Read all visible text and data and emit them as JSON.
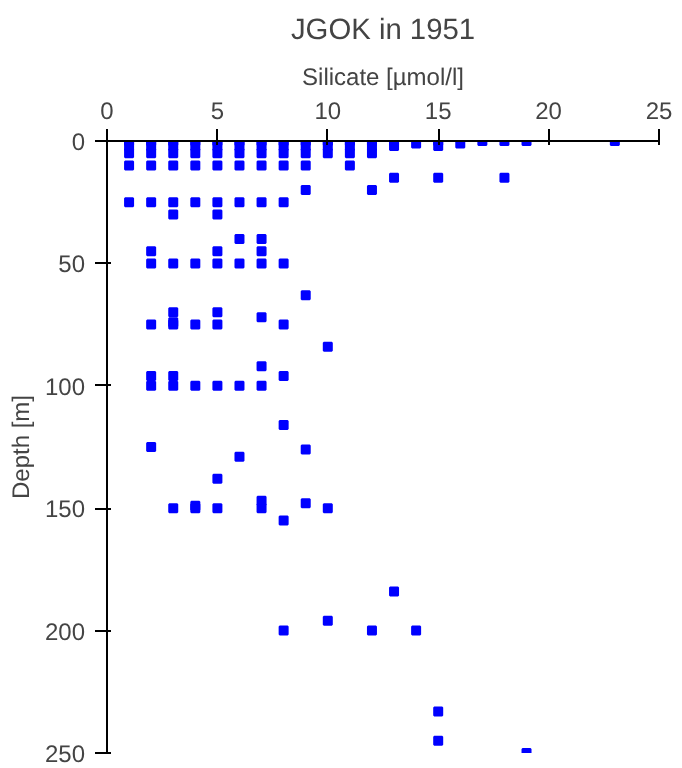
{
  "chart_data": {
    "type": "scatter",
    "title": "JGOK in 1951",
    "xlabel": "Silicate [µmol/l]",
    "ylabel": "Depth [m]",
    "x": [
      1,
      2,
      3,
      4,
      5,
      6,
      7,
      8,
      9,
      10,
      11,
      12,
      13,
      14,
      15,
      16,
      17,
      18,
      19,
      23,
      1,
      2,
      3,
      4,
      5,
      6,
      7,
      8,
      9,
      10,
      11,
      12,
      13,
      15,
      1,
      2,
      3,
      4,
      5,
      6,
      7,
      8,
      9,
      10,
      11,
      12,
      1,
      2,
      3,
      4,
      5,
      6,
      7,
      8,
      9,
      11,
      13,
      15,
      18,
      9,
      12,
      1,
      2,
      3,
      4,
      5,
      6,
      7,
      8,
      3,
      5,
      6,
      7,
      2,
      5,
      7,
      2,
      3,
      4,
      5,
      6,
      7,
      8,
      9,
      3,
      5,
      7,
      3,
      2,
      3,
      4,
      5,
      8,
      10,
      7,
      2,
      3,
      8,
      2,
      3,
      4,
      5,
      6,
      7,
      8,
      2,
      9,
      6,
      5,
      7,
      4,
      9,
      3,
      4,
      5,
      7,
      10,
      8,
      13,
      10,
      8,
      12,
      14,
      15,
      15,
      19
    ],
    "values": [
      0,
      0,
      0,
      0,
      0,
      0,
      0,
      0,
      0,
      0,
      0,
      0,
      0,
      1,
      0,
      1,
      0,
      0,
      0,
      0,
      2,
      2,
      2,
      2,
      2,
      2,
      2,
      2,
      2,
      2,
      2,
      2,
      2,
      2,
      5,
      5,
      5,
      5,
      5,
      5,
      5,
      5,
      5,
      5,
      5,
      5,
      10,
      10,
      10,
      10,
      10,
      10,
      10,
      10,
      10,
      10,
      15,
      15,
      15,
      20,
      20,
      25,
      25,
      25,
      25,
      25,
      25,
      25,
      25,
      30,
      30,
      40,
      40,
      45,
      45,
      45,
      50,
      50,
      50,
      50,
      50,
      50,
      50,
      63,
      70,
      70,
      72,
      74,
      75,
      75,
      75,
      75,
      75,
      84,
      92,
      96,
      96,
      96,
      100,
      100,
      100,
      100,
      100,
      100,
      116,
      125,
      126,
      129,
      138,
      147,
      149,
      148,
      150,
      150,
      150,
      150,
      150,
      155,
      184,
      196,
      200,
      200,
      200,
      233,
      245,
      250
    ],
    "color": "#0000ff",
    "marker": "square",
    "xlim": [
      0,
      25
    ],
    "ylim": [
      250,
      0
    ],
    "xticks": [
      0,
      5,
      10,
      15,
      20,
      25
    ],
    "yticks": [
      0,
      50,
      100,
      150,
      200,
      250
    ],
    "grid": false
  }
}
